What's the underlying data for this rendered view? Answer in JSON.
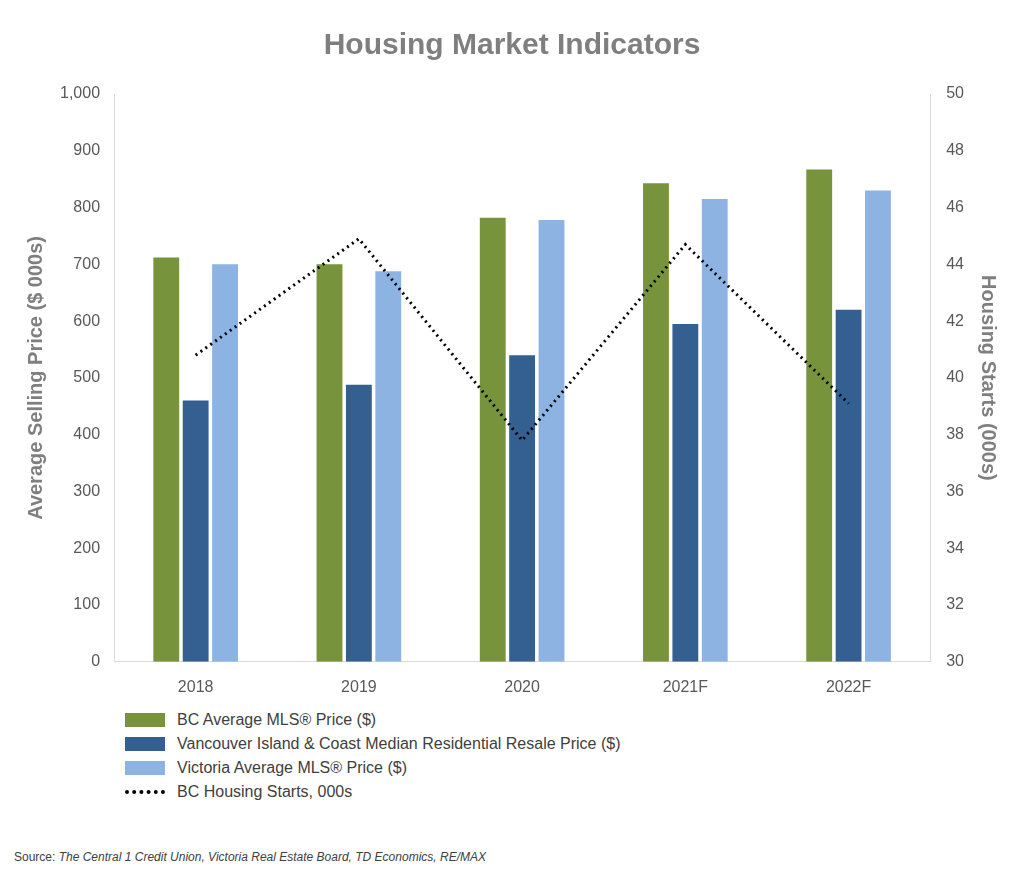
{
  "chart_data": {
    "type": "bar",
    "title": "Housing Market Indicators",
    "categories": [
      "2018",
      "2019",
      "2020",
      "2021F",
      "2022F"
    ],
    "y_label": "Average Selling Price ($ 000s)",
    "y2_label": "Housing Starts (000s)",
    "ylim": [
      0,
      1000
    ],
    "yticks": [
      0,
      100,
      200,
      300,
      400,
      500,
      600,
      700,
      800,
      900,
      1000
    ],
    "y2lim": [
      30,
      50
    ],
    "y2ticks": [
      30,
      32,
      34,
      36,
      38,
      40,
      42,
      44,
      46,
      48,
      50
    ],
    "grid": false,
    "legend": "bottom",
    "series": [
      {
        "name": "BC Average MLS® Price ($)",
        "color": "#77933c",
        "values": [
          712,
          700,
          782,
          843,
          867
        ]
      },
      {
        "name": "Vancouver Island & Coast Median Residential Resale Price ($)",
        "color": "#335f91",
        "values": [
          460,
          488,
          540,
          595,
          620
        ]
      },
      {
        "name": "Victoria Average MLS® Price ($)",
        "color": "#8db3e2",
        "values": [
          700,
          688,
          778,
          815,
          830
        ]
      },
      {
        "name": "BC Housing Starts, 000s",
        "color": "#000000",
        "type": "line",
        "line_style": "dotted",
        "axis": "y2",
        "values": [
          40.8,
          44.9,
          37.8,
          44.7,
          39.1
        ]
      }
    ],
    "source": "Source: The Central 1 Credit Union, Victoria Real Estate Board,  TD Economics, RE/MAX"
  }
}
